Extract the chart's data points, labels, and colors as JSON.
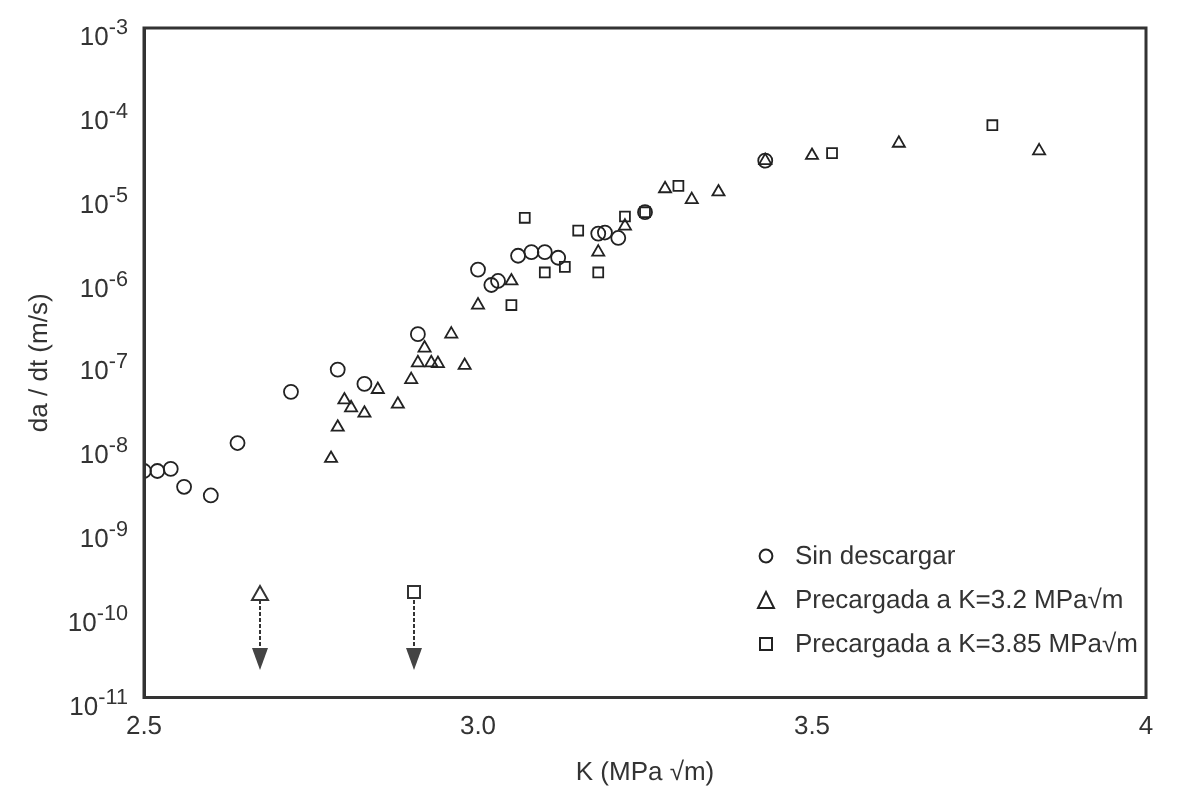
{
  "chart_data": {
    "type": "scatter",
    "xlabel": "K (MPa √m)",
    "ylabel": "da / dt (m/s)",
    "log": "y",
    "grid": false,
    "legend": "bottom right",
    "xlim": [
      2.5,
      4
    ],
    "xticks": [
      2.5,
      {
        "value": 3,
        "label": "3.0"
      },
      3.5,
      4
    ],
    "ylim": [
      1e-11,
      0.001
    ],
    "yticks": [
      {
        "value": 1e-11,
        "label": "10$^{-11}$"
      },
      {
        "value": 1e-10,
        "label": "10$^{-10}$"
      },
      {
        "value": 1e-09,
        "label": "10$^{-9}$"
      },
      {
        "value": 1e-08,
        "label": "10$^{-8}$"
      },
      {
        "value": 1e-07,
        "label": "10$^{-7}$"
      },
      {
        "value": 1e-06,
        "label": "10$^{-6}$"
      },
      {
        "value": 1e-05,
        "label": "10$^{-5}$"
      },
      {
        "value": 0.0001,
        "label": "10$^{-4}$"
      },
      {
        "value": 0.001,
        "label": "10$^{-3}$"
      }
    ],
    "series": [
      {
        "name": "Sin descargar",
        "color": "#222222",
        "marker": "circle",
        "x": [
          2.5,
          2.52,
          2.54,
          2.56,
          2.6,
          2.64,
          2.72,
          2.79,
          2.83,
          2.91,
          3.0,
          3.02,
          3.03,
          3.06,
          3.08,
          3.1,
          3.12,
          3.18,
          3.19,
          3.21,
          3.25,
          3.43
        ],
        "values": [
          5.1e-09,
          5.1e-09,
          5.4e-09,
          3.3e-09,
          2.6e-09,
          1.1e-08,
          4.5e-08,
          8.3e-08,
          5.6e-08,
          2.2e-07,
          1.3e-06,
          8.5e-07,
          9.5e-07,
          1.9e-06,
          2.1e-06,
          2.1e-06,
          1.8e-06,
          3.5e-06,
          3.6e-06,
          3.1e-06,
          6.3e-06,
          2.6e-05
        ]
      },
      {
        "name": "Precargada a K=3.2 MPa√m",
        "color": "#222222",
        "marker": "triangle",
        "x": [
          2.78,
          2.79,
          2.8,
          2.81,
          2.83,
          2.85,
          2.88,
          2.9,
          2.91,
          2.92,
          2.93,
          2.94,
          2.96,
          2.98,
          3.0,
          3.05,
          3.18,
          3.22,
          3.28,
          3.32,
          3.36,
          3.43,
          3.5,
          3.63,
          3.84
        ],
        "values": [
          7.2e-09,
          1.7e-08,
          3.6e-08,
          2.9e-08,
          2.5e-08,
          4.8e-08,
          3.2e-08,
          6.3e-08,
          1e-07,
          1.5e-07,
          1e-07,
          9.8e-08,
          2.2e-07,
          9.3e-08,
          4.9e-07,
          9.5e-07,
          2.1e-06,
          4.3e-06,
          1.2e-05,
          8.9e-06,
          1.1e-05,
          2.6e-05,
          3e-05,
          4.2e-05,
          3.4e-05
        ]
      },
      {
        "name": "Precargada a K=3.85 MPa√m",
        "color": "#222222",
        "marker": "square",
        "x": [
          3.05,
          3.07,
          3.1,
          3.13,
          3.15,
          3.18,
          3.22,
          3.25,
          3.3,
          3.53,
          3.77
        ],
        "values": [
          4.9e-07,
          5.4e-06,
          1.2e-06,
          1.4e-06,
          3.8e-06,
          1.2e-06,
          5.6e-06,
          6.3e-06,
          1.3e-05,
          3.2e-05,
          6.9e-05
        ]
      }
    ]
  }
}
